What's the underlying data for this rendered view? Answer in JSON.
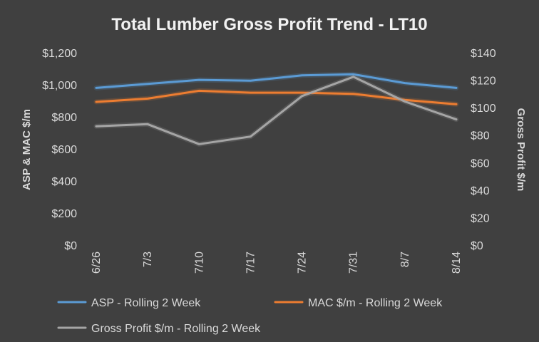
{
  "chart_data": {
    "type": "line",
    "title": "Total Lumber Gross Profit Trend - LT10",
    "categories": [
      "6/26",
      "7/3",
      "7/10",
      "7/17",
      "7/24",
      "7/31",
      "8/7",
      "8/14"
    ],
    "y_left": {
      "label": "ASP & MAC $/m",
      "ticks": [
        "$0",
        "$200",
        "$400",
        "$600",
        "$800",
        "$1,000",
        "$1,200"
      ],
      "range": [
        0,
        1200
      ]
    },
    "y_right": {
      "label": "Gross Profit $/m",
      "ticks": [
        "$0",
        "$20",
        "$40",
        "$60",
        "$80",
        "$100",
        "$120",
        "$140"
      ],
      "range": [
        0,
        140
      ]
    },
    "series": [
      {
        "name": "ASP - Rolling 2 Week",
        "axis": "left",
        "color": "#5b9bd5",
        "values": [
          985,
          1010,
          1035,
          1030,
          1063,
          1070,
          1015,
          985
        ]
      },
      {
        "name": "MAC $/m - Rolling 2 Week",
        "axis": "left",
        "color": "#ed7d31",
        "values": [
          898,
          918,
          967,
          955,
          955,
          948,
          910,
          883
        ]
      },
      {
        "name": "Gross Profit $/m - Rolling 2 Week",
        "axis": "right",
        "color": "#a5a5a5",
        "values": [
          87,
          88.5,
          74,
          79.5,
          109,
          123,
          105,
          92
        ]
      }
    ],
    "grid": false,
    "legend_position": "bottom"
  }
}
